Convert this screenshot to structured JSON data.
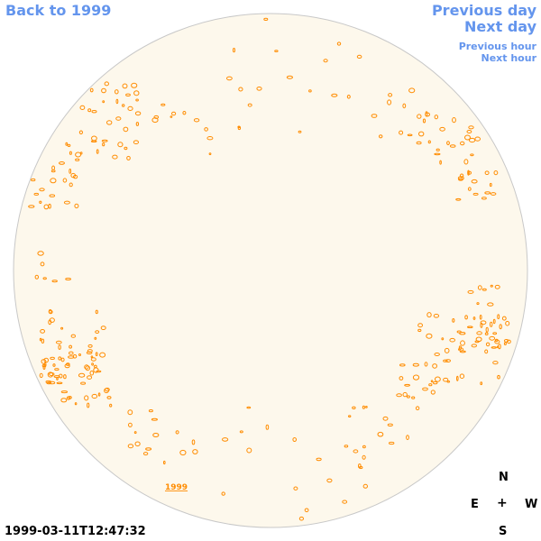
{
  "nav": {
    "back_label": "Back to 1999",
    "previous_day_label": "Previous day",
    "next_day_label": "Next day",
    "previous_hour_label": "Previous hour",
    "next_hour_label": "Next hour"
  },
  "map": {
    "disk_fill": "#fdf8ec",
    "disk_stroke": "#c8c8c8",
    "contour_color": "#ff8c00",
    "label_text": "1999"
  },
  "compass": {
    "north": "N",
    "east": "E",
    "center": "+",
    "west": "W",
    "south": "S"
  },
  "timestamp": "1999-03-11T12:47:32"
}
